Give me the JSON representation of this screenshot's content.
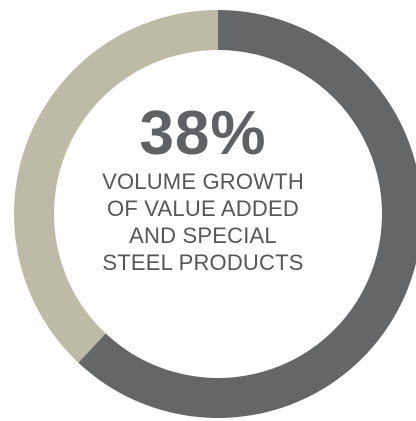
{
  "colors": {
    "highlight": "#bdbba6",
    "remainder": "#646668",
    "text_value": "#5f6164",
    "text_caption": "#545659"
  },
  "chart_data": {
    "type": "pie",
    "variant": "donut",
    "value_label": "38%",
    "caption_lines": [
      "VOLUME GROWTH",
      "OF VALUE ADDED",
      "AND SPECIAL",
      "STEEL PRODUCTS"
    ],
    "slices": [
      {
        "value": 38,
        "color": "#bdbba6"
      },
      {
        "value": 62,
        "color": "#646668"
      }
    ],
    "start_angle_deg": -90,
    "direction": "counterclockwise"
  }
}
